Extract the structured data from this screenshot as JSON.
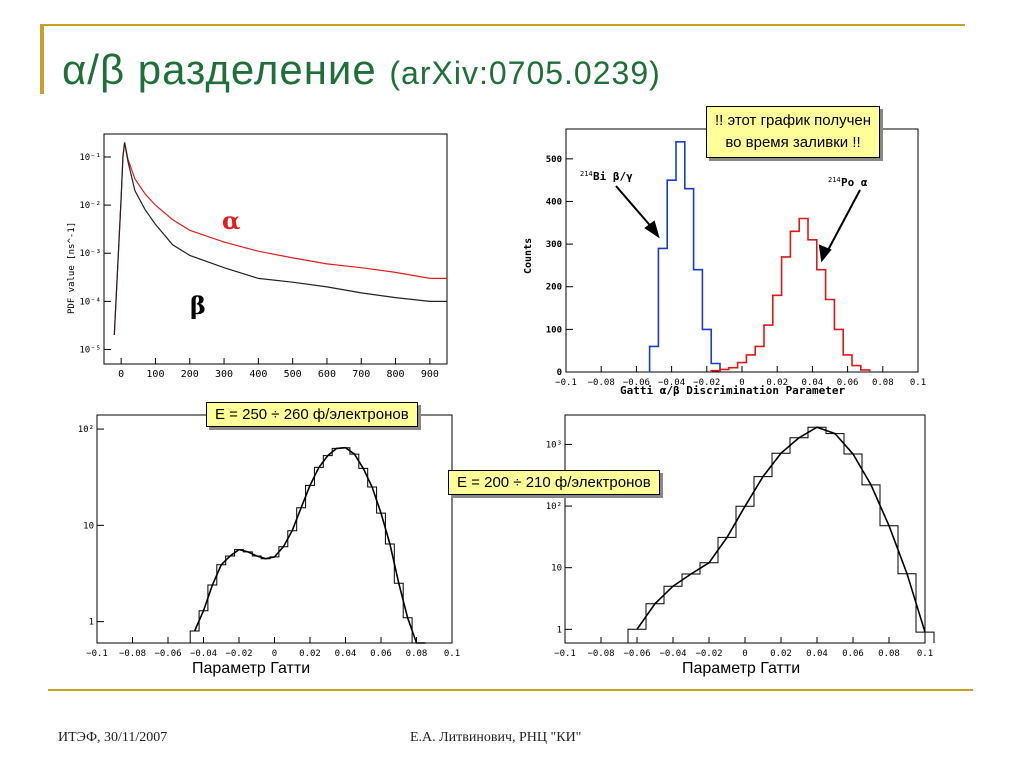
{
  "slide": {
    "title_main": "α/β разделение",
    "title_ref": "(arXiv:0705.0239)",
    "footer_left": "ИТЭФ, 30/11/2007",
    "footer_center": "Е.А. Литвинович, РНЦ \"КИ\"",
    "colors": {
      "title": "#1f6f3a",
      "accent_line": "#c8a02a",
      "callout_bg": "#ffff99"
    }
  },
  "callouts": {
    "note_line1": "!! этот график получен",
    "note_line2": "во время заливки !!",
    "energy_left": "E = 250 ÷ 260 ф/электронов",
    "energy_right": "E = 200 ÷ 210 ф/электронов"
  },
  "captions": {
    "bottom_left": "Параметр Гатти",
    "bottom_right": "Параметр Гатти"
  },
  "chart_data": [
    {
      "type": "line",
      "id": "pulse_shapes",
      "ylabel": "PDF value [ns^-1]",
      "xlim": [
        -50,
        950
      ],
      "yscale": "log",
      "ylim": [
        5e-06,
        0.3
      ],
      "x_ticks": [
        "0",
        "100",
        "200",
        "300",
        "400",
        "500",
        "600",
        "700",
        "800",
        "900"
      ],
      "y_ticks": [
        "10^-5",
        "10^-4",
        "10^-3",
        "10^-2",
        "10^-1"
      ],
      "label_alpha": "α",
      "label_beta": "β",
      "series": [
        {
          "name": "α",
          "color": "#e02020",
          "x": [
            -20,
            0,
            5,
            10,
            20,
            40,
            70,
            100,
            150,
            200,
            300,
            400,
            500,
            600,
            700,
            800,
            900,
            950
          ],
          "y": [
            2e-05,
            0.015,
            0.1,
            0.2,
            0.09,
            0.035,
            0.017,
            0.01,
            0.005,
            0.003,
            0.0017,
            0.0011,
            0.0008,
            0.0006,
            0.0005,
            0.0004,
            0.0003,
            0.0003
          ]
        },
        {
          "name": "β",
          "color": "#222222",
          "x": [
            -20,
            0,
            5,
            10,
            20,
            40,
            70,
            100,
            150,
            200,
            300,
            400,
            500,
            600,
            700,
            800,
            900,
            950
          ],
          "y": [
            2e-05,
            0.015,
            0.1,
            0.2,
            0.08,
            0.02,
            0.008,
            0.004,
            0.0015,
            0.0009,
            0.0005,
            0.0003,
            0.00025,
            0.0002,
            0.00015,
            0.00012,
            0.0001,
            0.0001
          ]
        }
      ]
    },
    {
      "type": "line",
      "id": "gatti_distribution",
      "xlabel": "Gatti α/β Discrimination Parameter",
      "ylabel": "Counts",
      "xlim": [
        -0.1,
        0.1
      ],
      "ylim": [
        0,
        570
      ],
      "x_ticks": [
        "−0.1",
        "−0.08",
        "−0.06",
        "−0.04",
        "−0.02",
        "0",
        "0.02",
        "0.04",
        "0.06",
        "0.08",
        "0.1"
      ],
      "y_ticks": [
        "0",
        "100",
        "200",
        "300",
        "400",
        "500"
      ],
      "annot_bi_iso": "214",
      "annot_bi": "Bi β/γ",
      "annot_po_iso": "214",
      "annot_po": "Po α",
      "series": [
        {
          "name": "214Bi β/γ",
          "color": "#1a3ccc",
          "x": [
            -0.05,
            -0.045,
            -0.04,
            -0.035,
            -0.03,
            -0.025,
            -0.02,
            -0.015
          ],
          "y": [
            60,
            290,
            450,
            540,
            430,
            240,
            100,
            20
          ]
        },
        {
          "name": "214Po α",
          "color": "#dd1a1a",
          "x": [
            -0.015,
            -0.01,
            -0.005,
            0,
            0.005,
            0.01,
            0.015,
            0.02,
            0.025,
            0.03,
            0.035,
            0.04,
            0.045,
            0.05,
            0.055,
            0.06,
            0.065,
            0.07
          ],
          "y": [
            3,
            6,
            10,
            22,
            40,
            60,
            110,
            180,
            270,
            330,
            360,
            310,
            240,
            170,
            100,
            40,
            15,
            5
          ]
        }
      ]
    },
    {
      "type": "line",
      "id": "gatti_250_260",
      "yscale": "log",
      "xlim": [
        -0.1,
        0.1
      ],
      "ylim": [
        0.6,
        140
      ],
      "x_ticks": [
        "−0.1",
        "−0.08",
        "−0.06",
        "−0.04",
        "−0.02",
        "0",
        "0.02",
        "0.04",
        "0.06",
        "0.08",
        "0.1"
      ],
      "y_ticks": [
        "1",
        "10",
        "10^2"
      ],
      "x": [
        -0.045,
        -0.04,
        -0.035,
        -0.03,
        -0.025,
        -0.02,
        -0.015,
        -0.01,
        -0.005,
        0,
        0.005,
        0.01,
        0.015,
        0.02,
        0.025,
        0.03,
        0.035,
        0.04,
        0.045,
        0.05,
        0.055,
        0.06,
        0.065,
        0.07,
        0.075,
        0.08,
        0.085
      ],
      "y": [
        0.8,
        1.3,
        2.4,
        3.9,
        4.8,
        5.6,
        5.3,
        4.8,
        4.5,
        4.7,
        6,
        8.8,
        15.2,
        26,
        40,
        53,
        63,
        64,
        55,
        39,
        25,
        13.4,
        6.4,
        2.5,
        1.1,
        0.6,
        0.5
      ]
    },
    {
      "type": "line",
      "id": "gatti_200_210",
      "yscale": "log",
      "xlim": [
        -0.1,
        0.1
      ],
      "ylim": [
        0.6,
        3000
      ],
      "x_ticks": [
        "−0.1",
        "−0.08",
        "−0.06",
        "−0.04",
        "−0.02",
        "0",
        "0.02",
        "0.04",
        "0.06",
        "0.08",
        "0.1"
      ],
      "y_ticks": [
        "1",
        "10",
        "10^2",
        "10^3"
      ],
      "x": [
        -0.06,
        -0.05,
        -0.04,
        -0.03,
        -0.02,
        -0.01,
        0,
        0.01,
        0.02,
        0.03,
        0.04,
        0.05,
        0.06,
        0.07,
        0.08,
        0.09,
        0.1
      ],
      "y": [
        1,
        2.6,
        5,
        7.9,
        12,
        31,
        99,
        300,
        720,
        1280,
        1900,
        1500,
        700,
        220,
        48,
        8,
        0.9
      ]
    }
  ]
}
